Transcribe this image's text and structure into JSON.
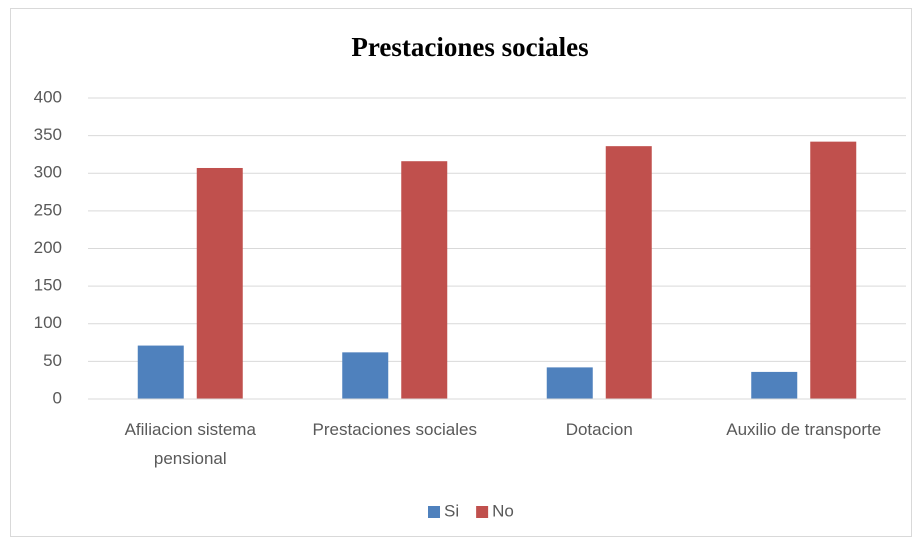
{
  "chart_data": {
    "type": "bar",
    "title": "Prestaciones sociales",
    "categories": [
      "Afiliacion sistema pensional",
      "Prestaciones sociales",
      "Dotacion",
      "Auxilio de transporte"
    ],
    "series": [
      {
        "name": "Si",
        "color": "#4f81bd",
        "values": [
          71,
          62,
          42,
          36
        ]
      },
      {
        "name": "No",
        "color": "#c0504d",
        "values": [
          307,
          316,
          336,
          342
        ]
      }
    ],
    "ylim": [
      0,
      400
    ],
    "yticks": [
      0,
      50,
      100,
      150,
      200,
      250,
      300,
      350,
      400
    ],
    "grid": true,
    "legend": "bottom"
  }
}
